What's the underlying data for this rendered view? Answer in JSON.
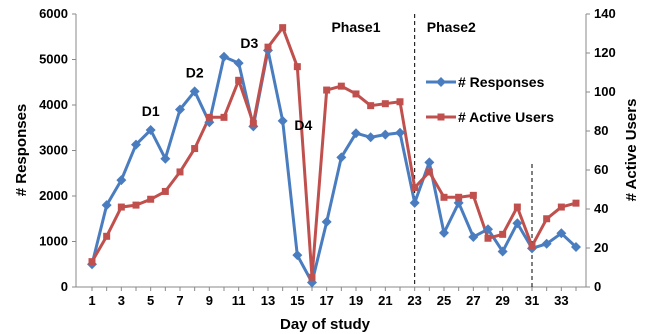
{
  "chart_data": {
    "type": "line",
    "xlabel": "Day of study",
    "ylabel": "# Responses",
    "y2label": "# Active Users",
    "xlim": [
      1,
      34
    ],
    "ylim": [
      0,
      6000
    ],
    "y2lim": [
      0,
      140
    ],
    "x_tick_labels": [
      "1",
      "3",
      "5",
      "7",
      "9",
      "11",
      "13",
      "15",
      "17",
      "19",
      "21",
      "23",
      "25",
      "27",
      "29",
      "31",
      "33"
    ],
    "y_tick_labels": [
      "0",
      "1000",
      "2000",
      "3000",
      "4000",
      "5000",
      "6000"
    ],
    "y2_tick_labels": [
      "0",
      "20",
      "40",
      "60",
      "80",
      "100",
      "120",
      "140"
    ],
    "legend_position": "right",
    "x": [
      1,
      2,
      3,
      4,
      5,
      6,
      7,
      8,
      9,
      10,
      11,
      12,
      13,
      14,
      15,
      16,
      17,
      18,
      19,
      20,
      21,
      22,
      23,
      24,
      25,
      26,
      27,
      28,
      29,
      30,
      31,
      32,
      33,
      34
    ],
    "series": [
      {
        "name": "# Responses",
        "axis": "left",
        "color": "#4a7dbf",
        "marker": "diamond",
        "values": [
          500,
          1800,
          2350,
          3130,
          3450,
          2820,
          3900,
          4300,
          3620,
          5060,
          4920,
          3530,
          5200,
          3650,
          700,
          100,
          1430,
          2850,
          3380,
          3290,
          3350,
          3390,
          1850,
          2740,
          1190,
          1850,
          1100,
          1270,
          780,
          1400,
          850,
          950,
          1180,
          880
        ]
      },
      {
        "name": "# Active Users",
        "axis": "right",
        "color": "#c0504d",
        "marker": "square",
        "values": [
          13,
          26,
          41,
          42,
          45,
          49,
          59,
          71,
          87,
          87,
          106,
          84,
          123,
          133,
          113,
          5,
          101,
          103,
          99,
          93,
          94,
          95,
          51,
          59,
          46,
          46,
          47,
          25,
          27,
          41,
          21,
          35,
          41,
          43
        ]
      }
    ],
    "annotations": [
      {
        "text": "D1",
        "x": 5
      },
      {
        "text": "D2",
        "x": 8
      },
      {
        "text": "D3",
        "x": 12
      },
      {
        "text": "D4",
        "x": 15
      }
    ],
    "phases": [
      {
        "label": "Phase1",
        "x": 19
      },
      {
        "label": "Phase2",
        "x": 25.5
      }
    ],
    "dividers": [
      23,
      31
    ]
  }
}
